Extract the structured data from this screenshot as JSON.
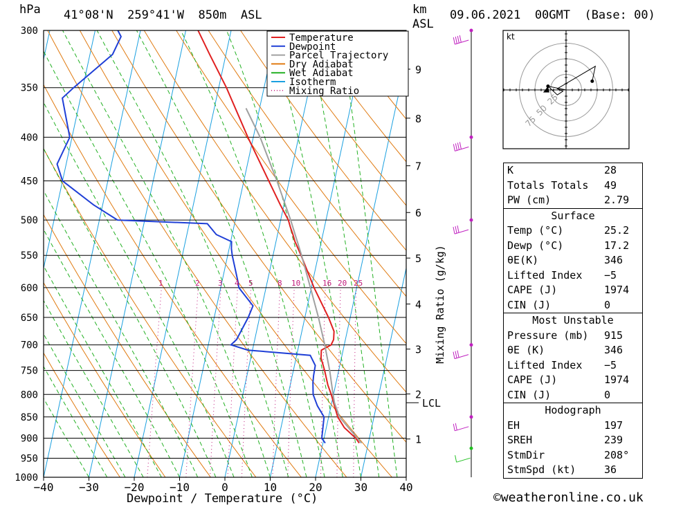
{
  "header": {
    "pressure_unit": "hPa",
    "location": "41°08'N  259°41'W  850m  ASL",
    "height_unit_1": "km",
    "height_unit_2": "ASL",
    "datetime": "09.06.2021  00GMT  (Base: 00)"
  },
  "chart_data": {
    "type": "skew-t",
    "xlabel": "Dewpoint / Temperature (°C)",
    "ylabel_right": "Mixing Ratio (g/kg)",
    "x_ticks": [
      -40,
      -30,
      -20,
      -10,
      0,
      10,
      20,
      30,
      40
    ],
    "x_tick_labels": [
      "−40",
      "−30",
      "−20",
      "−10",
      "0",
      "10",
      "20",
      "30",
      "40"
    ],
    "pressure_levels": [
      300,
      350,
      400,
      450,
      500,
      550,
      600,
      650,
      700,
      750,
      800,
      850,
      900,
      950,
      1000
    ],
    "pressure_labels": [
      "300",
      "350",
      "400",
      "450",
      "500",
      "550",
      "600",
      "650",
      "700",
      "750",
      "800",
      "850",
      "900",
      "950",
      "1000"
    ],
    "height_ticks": [
      {
        "km": "1",
        "p": 902
      },
      {
        "km": "2",
        "p": 799
      },
      {
        "km": "3",
        "p": 708
      },
      {
        "km": "4",
        "p": 627
      },
      {
        "km": "5",
        "p": 554
      },
      {
        "km": "6",
        "p": 490
      },
      {
        "km": "7",
        "p": 432
      },
      {
        "km": "8",
        "p": 380
      },
      {
        "km": "9",
        "p": 333
      }
    ],
    "lcl_label": "LCL",
    "lcl_pressure": 818,
    "mixing_ratio_labels": [
      "1",
      "2",
      "3",
      "4",
      "5",
      "8",
      "10",
      "16",
      "20",
      "25"
    ],
    "mixing_ratio_values": [
      1,
      2,
      3,
      4,
      5,
      8,
      10,
      16,
      20,
      25
    ],
    "legend": [
      {
        "name": "Temperature",
        "color": "#e02020",
        "style": "solid"
      },
      {
        "name": "Dewpoint",
        "color": "#1f3fd6",
        "style": "solid"
      },
      {
        "name": "Parcel Trajectory",
        "color": "#a0a0a0",
        "style": "solid"
      },
      {
        "name": "Dry Adiabat",
        "color": "#e07a10",
        "style": "solid"
      },
      {
        "name": "Wet Adiabat",
        "color": "#22b022",
        "style": "solid"
      },
      {
        "name": "Isotherm",
        "color": "#1aa0e0",
        "style": "solid"
      },
      {
        "name": "Mixing Ratio",
        "color": "#c0187a",
        "style": "dotted"
      }
    ],
    "series": [
      {
        "name": "Temperature",
        "points": [
          [
            912,
            28.0
          ],
          [
            900,
            27.0
          ],
          [
            875,
            24.0
          ],
          [
            850,
            22.0
          ],
          [
            800,
            19.5
          ],
          [
            780,
            18.3
          ],
          [
            750,
            16.9
          ],
          [
            725,
            15.5
          ],
          [
            710,
            15.2
          ],
          [
            700,
            17.1
          ],
          [
            690,
            17.4
          ],
          [
            675,
            17.1
          ],
          [
            650,
            15.2
          ],
          [
            600,
            10.6
          ],
          [
            550,
            6.2
          ],
          [
            530,
            4.2
          ],
          [
            520,
            3.4
          ],
          [
            510,
            2.5
          ],
          [
            500,
            1.7
          ],
          [
            480,
            -0.8
          ],
          [
            450,
            -4.5
          ],
          [
            400,
            -11.2
          ],
          [
            350,
            -18.3
          ],
          [
            320,
            -23.6
          ],
          [
            300,
            -27.3
          ]
        ]
      },
      {
        "name": "Dewpoint",
        "points": [
          [
            912,
            20.5
          ],
          [
            900,
            19.5
          ],
          [
            850,
            19.0
          ],
          [
            825,
            17.0
          ],
          [
            800,
            15.5
          ],
          [
            775,
            14.9
          ],
          [
            760,
            14.7
          ],
          [
            740,
            14.6
          ],
          [
            720,
            13.0
          ],
          [
            710,
            -1.0
          ],
          [
            700,
            -5.0
          ],
          [
            690,
            -4.0
          ],
          [
            650,
            -2.5
          ],
          [
            630,
            -2.0
          ],
          [
            600,
            -6.0
          ],
          [
            590,
            -6.5
          ],
          [
            550,
            -9.0
          ],
          [
            540,
            -9.5
          ],
          [
            530,
            -9.8
          ],
          [
            520,
            -13.5
          ],
          [
            505,
            -16.0
          ],
          [
            500,
            -36.0
          ],
          [
            480,
            -42.0
          ],
          [
            450,
            -50.0
          ],
          [
            430,
            -52.0
          ],
          [
            400,
            -50.5
          ],
          [
            360,
            -54.0
          ],
          [
            350,
            -52.0
          ],
          [
            320,
            -45.0
          ],
          [
            305,
            -44.0
          ],
          [
            300,
            -45.0
          ]
        ]
      },
      {
        "name": "Parcel Trajectory",
        "points": [
          [
            912,
            28.5
          ],
          [
            850,
            22.4
          ],
          [
            818,
            20.6
          ],
          [
            800,
            19.9
          ],
          [
            750,
            18.0
          ],
          [
            700,
            15.7
          ],
          [
            650,
            13.0
          ],
          [
            600,
            9.8
          ],
          [
            550,
            6.3
          ],
          [
            500,
            2.2
          ],
          [
            450,
            -2.7
          ],
          [
            400,
            -8.5
          ],
          [
            370,
            -13.0
          ]
        ]
      }
    ],
    "wind_barbs": [
      {
        "p": 300,
        "spd": 40,
        "dir": 248
      },
      {
        "p": 400,
        "spd": 35,
        "dir": 245
      },
      {
        "p": 500,
        "spd": 25,
        "dir": 270
      },
      {
        "p": 700,
        "spd": 30,
        "dir": 270
      },
      {
        "p": 850,
        "spd": 20,
        "dir": 290
      },
      {
        "p": 925,
        "spd": 5,
        "dir": 200
      }
    ],
    "hodograph": {
      "unit": "kt",
      "rings": [
        "25",
        "50",
        "75"
      ],
      "trace": [
        [
          14,
          42
        ],
        [
          38,
          47
        ],
        [
          2,
          -14
        ],
        [
          -2,
          -5
        ],
        [
          -8,
          -14
        ],
        [
          6,
          -29
        ]
      ],
      "storm_motion": [
        6,
        -29
      ]
    }
  },
  "indices": {
    "k": {
      "label": "K",
      "value": "28"
    },
    "totals": {
      "label": "Totals Totals",
      "value": "49"
    },
    "pw": {
      "label": "PW (cm)",
      "value": "2.79"
    }
  },
  "surface": {
    "title": "Surface",
    "temp": {
      "label": "Temp (°C)",
      "value": "25.2"
    },
    "dewp": {
      "label": "Dewp (°C)",
      "value": "17.2"
    },
    "theta_e": {
      "label": "θE(K)",
      "value": "346"
    },
    "lifted": {
      "label": "Lifted Index",
      "value": "−5"
    },
    "cape": {
      "label": "CAPE (J)",
      "value": "1974"
    },
    "cin": {
      "label": "CIN (J)",
      "value": "0"
    }
  },
  "most_unstable": {
    "title": "Most Unstable",
    "pressure": {
      "label": "Pressure (mb)",
      "value": "915"
    },
    "theta_e": {
      "label": "θE (K)",
      "value": "346"
    },
    "lifted": {
      "label": "Lifted Index",
      "value": "−5"
    },
    "cape": {
      "label": "CAPE (J)",
      "value": "1974"
    },
    "cin": {
      "label": "CIN (J)",
      "value": "0"
    }
  },
  "hodograph_table": {
    "title": "Hodograph",
    "eh": {
      "label": "EH",
      "value": "197"
    },
    "sreh": {
      "label": "SREH",
      "value": "239"
    },
    "stmdir": {
      "label": "StmDir",
      "value": "208°"
    },
    "stmspd": {
      "label": "StmSpd (kt)",
      "value": "36"
    }
  },
  "footer": {
    "copyright": "©weatheronline.co.uk"
  },
  "colors": {
    "temperature": "#e02020",
    "dewpoint": "#1f3fd6",
    "parcel": "#a0a0a0",
    "dry": "#e07a10",
    "wet": "#22b022",
    "isotherm": "#1aa0e0",
    "mixing": "#c0187a",
    "wind": "#c020c0"
  }
}
